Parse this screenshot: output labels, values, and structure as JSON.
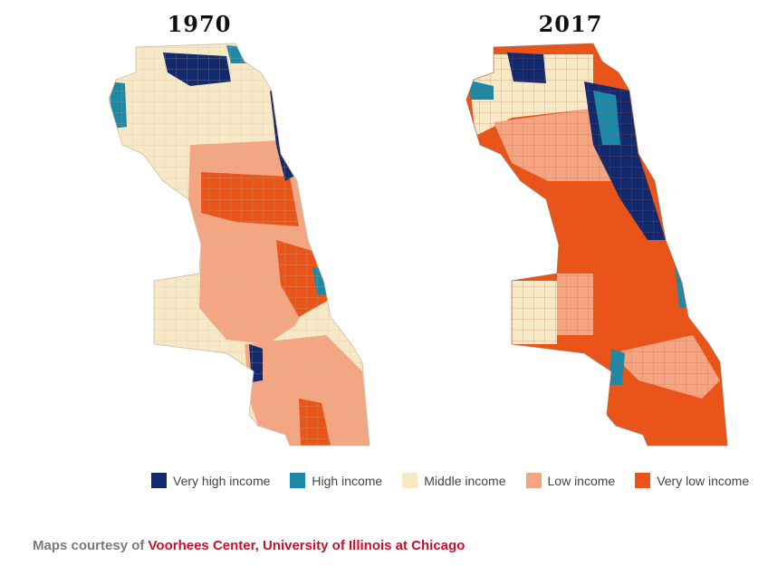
{
  "maps": [
    {
      "title": "1970"
    },
    {
      "title": "2017"
    }
  ],
  "legend": [
    {
      "label": "Very high income",
      "color": "#13296e"
    },
    {
      "label": "High income",
      "color": "#1d89a8"
    },
    {
      "label": "Middle income",
      "color": "#f8e9c6"
    },
    {
      "label": "Low income",
      "color": "#f5a582"
    },
    {
      "label": "Very low income",
      "color": "#ea5419"
    }
  ],
  "credit": {
    "prefix": "Maps courtesy of ",
    "source": "Voorhees Center, University of Illinois at Chicago"
  }
}
